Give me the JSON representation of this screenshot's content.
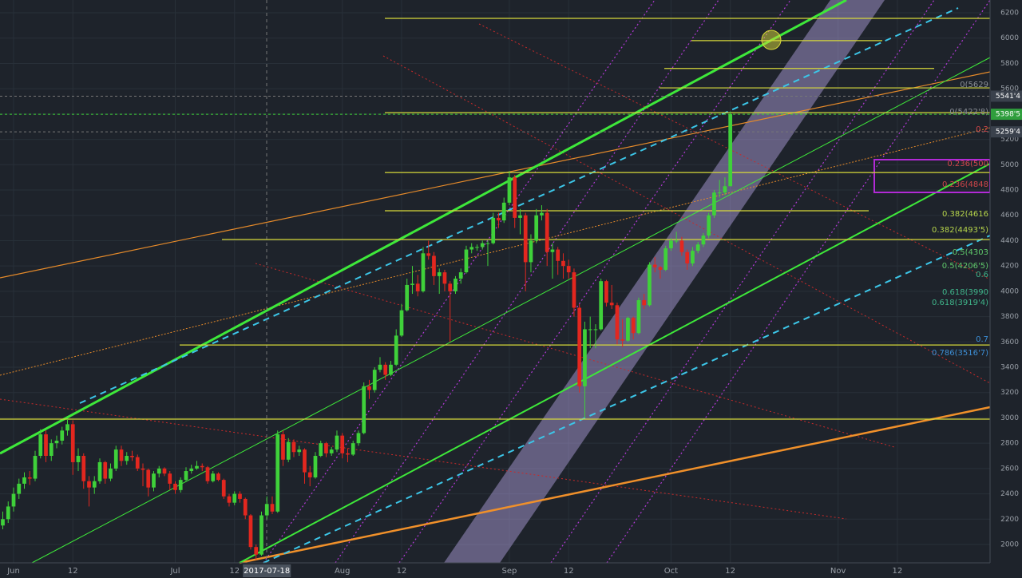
{
  "chart_data": {
    "type": "candlestick",
    "up_color": "#3fd13a",
    "down_color": "#e3271f",
    "grid": true,
    "xlim": [
      -0.52,
      183.2
    ],
    "ylim": [
      1855,
      6301
    ],
    "xticks": [
      {
        "value": 2,
        "label": "Jun"
      },
      {
        "value": 13,
        "label": "12"
      },
      {
        "value": 32,
        "label": "Jul"
      },
      {
        "value": 43,
        "label": "12"
      },
      {
        "value": 63,
        "label": "Aug"
      },
      {
        "value": 74,
        "label": "12"
      },
      {
        "value": 94,
        "label": "Sep"
      },
      {
        "value": 105,
        "label": "12"
      },
      {
        "value": 124,
        "label": "Oct"
      },
      {
        "value": 135,
        "label": "12"
      },
      {
        "value": 155,
        "label": "Nov"
      },
      {
        "value": 166,
        "label": "12"
      }
    ],
    "crosshair_x": {
      "value": 49,
      "label": "2017-07-18"
    },
    "yticks": [
      2000,
      2200,
      2400,
      2600,
      2800,
      3000,
      3200,
      3400,
      3600,
      3800,
      4000,
      4200,
      4400,
      4600,
      4800,
      5000,
      5200,
      5400,
      5600,
      5800,
      6000,
      6200
    ],
    "candles": [
      [
        2150,
        2260,
        2120,
        2200
      ],
      [
        2200,
        2340,
        2170,
        2300
      ],
      [
        2300,
        2450,
        2260,
        2400
      ],
      [
        2400,
        2520,
        2360,
        2480
      ],
      [
        2480,
        2570,
        2440,
        2530
      ],
      [
        2530,
        2580,
        2470,
        2520
      ],
      [
        2520,
        2740,
        2500,
        2700
      ],
      [
        2700,
        2910,
        2680,
        2870
      ],
      [
        2870,
        2900,
        2650,
        2700
      ],
      [
        2700,
        2830,
        2660,
        2800
      ],
      [
        2800,
        2860,
        2760,
        2820
      ],
      [
        2820,
        2930,
        2790,
        2900
      ],
      [
        2900,
        2990,
        2860,
        2950
      ],
      [
        2950,
        2980,
        2550,
        2650
      ],
      [
        2650,
        2760,
        2580,
        2700
      ],
      [
        2700,
        2720,
        2440,
        2500
      ],
      [
        2500,
        2540,
        2300,
        2450
      ],
      [
        2450,
        2540,
        2400,
        2500
      ],
      [
        2500,
        2680,
        2480,
        2650
      ],
      [
        2650,
        2660,
        2480,
        2520
      ],
      [
        2520,
        2640,
        2500,
        2600
      ],
      [
        2600,
        2780,
        2580,
        2750
      ],
      [
        2750,
        2780,
        2620,
        2660
      ],
      [
        2660,
        2730,
        2630,
        2700
      ],
      [
        2700,
        2740,
        2660,
        2690
      ],
      [
        2690,
        2710,
        2580,
        2600
      ],
      [
        2600,
        2640,
        2460,
        2590
      ],
      [
        2590,
        2600,
        2380,
        2450
      ],
      [
        2450,
        2580,
        2420,
        2560
      ],
      [
        2560,
        2620,
        2530,
        2600
      ],
      [
        2600,
        2610,
        2540,
        2560
      ],
      [
        2560,
        2580,
        2430,
        2480
      ],
      [
        2480,
        2500,
        2400,
        2430
      ],
      [
        2430,
        2530,
        2410,
        2510
      ],
      [
        2510,
        2610,
        2500,
        2580
      ],
      [
        2580,
        2630,
        2560,
        2600
      ],
      [
        2600,
        2660,
        2590,
        2620
      ],
      [
        2620,
        2640,
        2580,
        2610
      ],
      [
        2610,
        2620,
        2480,
        2500
      ],
      [
        2500,
        2580,
        2490,
        2560
      ],
      [
        2560,
        2570,
        2500,
        2510
      ],
      [
        2510,
        2520,
        2360,
        2380
      ],
      [
        2380,
        2400,
        2300,
        2330
      ],
      [
        2330,
        2420,
        2310,
        2400
      ],
      [
        2400,
        2420,
        2330,
        2360
      ],
      [
        2360,
        2370,
        2200,
        2230
      ],
      [
        2230,
        2240,
        1960,
        1980
      ],
      [
        1980,
        2000,
        1880,
        1920
      ],
      [
        1920,
        2260,
        1910,
        2230
      ],
      [
        2230,
        2380,
        2200,
        2320
      ],
      [
        2320,
        2380,
        2240,
        2260
      ],
      [
        2260,
        2900,
        2250,
        2870
      ],
      [
        2870,
        2900,
        2620,
        2670
      ],
      [
        2670,
        2840,
        2650,
        2810
      ],
      [
        2810,
        2830,
        2690,
        2730
      ],
      [
        2730,
        2780,
        2700,
        2750
      ],
      [
        2750,
        2760,
        2480,
        2570
      ],
      [
        2570,
        2620,
        2460,
        2530
      ],
      [
        2530,
        2730,
        2520,
        2700
      ],
      [
        2700,
        2820,
        2690,
        2800
      ],
      [
        2800,
        2810,
        2690,
        2720
      ],
      [
        2720,
        2770,
        2700,
        2750
      ],
      [
        2750,
        2900,
        2730,
        2860
      ],
      [
        2860,
        2880,
        2680,
        2720
      ],
      [
        2720,
        2760,
        2650,
        2710
      ],
      [
        2710,
        2820,
        2700,
        2800
      ],
      [
        2800,
        2900,
        2780,
        2880
      ],
      [
        2880,
        3280,
        2870,
        3250
      ],
      [
        3250,
        3300,
        3150,
        3220
      ],
      [
        3220,
        3400,
        3200,
        3380
      ],
      [
        3380,
        3480,
        3360,
        3420
      ],
      [
        3420,
        3440,
        3300,
        3340
      ],
      [
        3340,
        3450,
        3330,
        3420
      ],
      [
        3420,
        3700,
        3410,
        3650
      ],
      [
        3650,
        3900,
        3640,
        3850
      ],
      [
        3850,
        4100,
        3840,
        4050
      ],
      [
        4050,
        4200,
        3980,
        4060
      ],
      [
        4060,
        4130,
        3960,
        4000
      ],
      [
        4000,
        4350,
        3990,
        4300
      ],
      [
        4300,
        4400,
        4250,
        4280
      ],
      [
        4280,
        4310,
        4050,
        4120
      ],
      [
        4120,
        4180,
        3980,
        4150
      ],
      [
        4150,
        4170,
        4000,
        4060
      ],
      [
        4060,
        4080,
        3600,
        4000
      ],
      [
        4000,
        4120,
        3980,
        4100
      ],
      [
        4100,
        4180,
        4060,
        4150
      ],
      [
        4150,
        4360,
        4140,
        4330
      ],
      [
        4330,
        4380,
        4300,
        4350
      ],
      [
        4350,
        4370,
        4320,
        4350
      ],
      [
        4350,
        4400,
        4330,
        4380
      ],
      [
        4380,
        4400,
        4200,
        4380
      ],
      [
        4380,
        4620,
        4370,
        4580
      ],
      [
        4580,
        4620,
        4500,
        4560
      ],
      [
        4560,
        4740,
        4540,
        4700
      ],
      [
        4700,
        4950,
        4680,
        4900
      ],
      [
        4900,
        4920,
        4500,
        4580
      ],
      [
        4580,
        4650,
        4450,
        4600
      ],
      [
        4600,
        4620,
        4000,
        4230
      ],
      [
        4230,
        4450,
        4150,
        4400
      ],
      [
        4400,
        4650,
        4380,
        4600
      ],
      [
        4600,
        4680,
        4560,
        4620
      ],
      [
        4620,
        4650,
        4200,
        4310
      ],
      [
        4310,
        4380,
        4100,
        4330
      ],
      [
        4330,
        4350,
        4130,
        4240
      ],
      [
        4240,
        4300,
        4100,
        4200
      ],
      [
        4200,
        4250,
        4100,
        4150
      ],
      [
        4150,
        4180,
        3800,
        3870
      ],
      [
        3870,
        3900,
        3200,
        3250
      ],
      [
        3250,
        3760,
        3000,
        3700
      ],
      [
        3700,
        3800,
        3550,
        3700
      ],
      [
        3700,
        3740,
        3550,
        3700
      ],
      [
        3700,
        4100,
        3690,
        4080
      ],
      [
        4080,
        4090,
        3880,
        3910
      ],
      [
        3910,
        4050,
        3860,
        3890
      ],
      [
        3890,
        3910,
        3580,
        3620
      ],
      [
        3620,
        3780,
        3560,
        3610
      ],
      [
        3610,
        3800,
        3600,
        3790
      ],
      [
        3790,
        3800,
        3620,
        3670
      ],
      [
        3670,
        3950,
        3660,
        3930
      ],
      [
        3930,
        3980,
        3860,
        3890
      ],
      [
        3890,
        4230,
        3880,
        4210
      ],
      [
        4210,
        4270,
        4150,
        4190
      ],
      [
        4190,
        4200,
        4100,
        4170
      ],
      [
        4170,
        4360,
        4160,
        4340
      ],
      [
        4340,
        4420,
        4320,
        4400
      ],
      [
        4400,
        4470,
        4380,
        4400
      ],
      [
        4400,
        4430,
        4280,
        4310
      ],
      [
        4310,
        4330,
        4170,
        4220
      ],
      [
        4220,
        4350,
        4200,
        4320
      ],
      [
        4320,
        4390,
        4300,
        4370
      ],
      [
        4370,
        4460,
        4350,
        4440
      ],
      [
        4440,
        4620,
        4420,
        4600
      ],
      [
        4600,
        4800,
        4580,
        4780
      ],
      [
        4780,
        4880,
        4740,
        4780
      ],
      [
        4780,
        4900,
        4760,
        4830
      ],
      [
        4830,
        5420,
        4830,
        5400
      ]
    ],
    "levels": [
      6156,
      5980,
      5760,
      5607,
      5411,
      4938,
      4636,
      4409,
      3576,
      2990
    ],
    "level_color": "#d7d93a",
    "price_labels": [
      {
        "value": 5541.4,
        "label": "5541'4",
        "color": "#3a414c"
      },
      {
        "value": 5398.5,
        "label": "5398'5",
        "color": "#2f9e3d"
      },
      {
        "value": 5259.4,
        "label": "5259'4",
        "color": "#3a414c"
      }
    ],
    "annotations": [
      {
        "value": 5633,
        "label": "0(5629",
        "color": "#8a8f96"
      },
      {
        "value": 5418,
        "label": "0(5422'8)",
        "color": "#8a8f96"
      },
      {
        "value": 5279,
        "label": "0.2",
        "color": "#d0464a"
      },
      {
        "value": 5008,
        "label": "0.236(500",
        "color": "#d0464a"
      },
      {
        "value": 4844,
        "label": "0.236(4848",
        "color": "#d0464a"
      },
      {
        "value": 4611,
        "label": "0.382(4616",
        "color": "#b6d44a"
      },
      {
        "value": 4485,
        "label": "0.382(4493'5)",
        "color": "#b6d44a"
      },
      {
        "value": 4308,
        "label": "0.5(4303",
        "color": "#5fc86a"
      },
      {
        "value": 4201,
        "label": "0.5(4206'5)",
        "color": "#5fc86a"
      },
      {
        "value": 4132,
        "label": "0.6",
        "color": "#3fb58a"
      },
      {
        "value": 3993,
        "label": "0.618(3990",
        "color": "#3fb58a"
      },
      {
        "value": 3911,
        "label": "0.618(3919'4)",
        "color": "#3fb58a"
      },
      {
        "value": 3621,
        "label": "0.7",
        "color": "#3d8fd6"
      },
      {
        "value": 3514,
        "label": "0.786(3516'7)",
        "color": "#3d8fd6"
      }
    ]
  }
}
